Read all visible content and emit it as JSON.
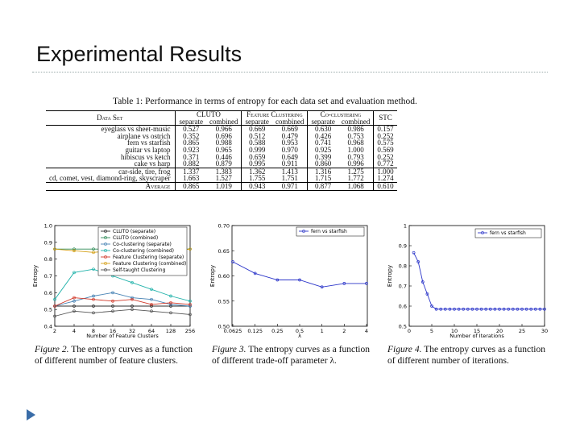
{
  "slide_title": "Experimental Results",
  "table": {
    "caption": "Table 1: Performance in terms of entropy for each data set and evaluation method.",
    "col_dataset": "Data Set",
    "groups": [
      "CLUTO",
      "Feature Clustering",
      "Co-clustering",
      "STC"
    ],
    "subcols": [
      "separate",
      "combined",
      "separate",
      "combined",
      "separate",
      "combined"
    ],
    "rows": [
      {
        "name": "eyeglass vs sheet-music",
        "v": [
          "0.527",
          "0.966",
          "0.669",
          "0.669",
          "0.630",
          "0.986",
          "0.157"
        ]
      },
      {
        "name": "airplane vs ostrich",
        "v": [
          "0.352",
          "0.696",
          "0.512",
          "0.479",
          "0.426",
          "0.753",
          "0.252"
        ]
      },
      {
        "name": "fern vs starfish",
        "v": [
          "0.865",
          "0.988",
          "0.588",
          "0.953",
          "0.741",
          "0.968",
          "0.575"
        ]
      },
      {
        "name": "guitar vs laptop",
        "v": [
          "0.923",
          "0.965",
          "0.999",
          "0.970",
          "0.925",
          "1.000",
          "0.569"
        ]
      },
      {
        "name": "hibiscus vs ketch",
        "v": [
          "0.371",
          "0.446",
          "0.659",
          "0.649",
          "0.399",
          "0.793",
          "0.252"
        ]
      },
      {
        "name": "cake vs harp",
        "v": [
          "0.882",
          "0.879",
          "0.995",
          "0.911",
          "0.860",
          "0.996",
          "0.772"
        ]
      }
    ],
    "rows_multi": [
      {
        "name": "car-side, tire, frog",
        "v": [
          "1.337",
          "1.383",
          "1.362",
          "1.413",
          "1.316",
          "1.275",
          "1.000"
        ]
      },
      {
        "name": "cd, comet, vest, diamond-ring, skyscraper",
        "v": [
          "1.663",
          "1.527",
          "1.755",
          "1.751",
          "1.715",
          "1.772",
          "1.274"
        ]
      }
    ],
    "average": {
      "name": "Average",
      "v": [
        "0.865",
        "1.019",
        "0.943",
        "0.971",
        "0.877",
        "1.068",
        "0.610"
      ]
    }
  },
  "fig2": {
    "chart_data": {
      "type": "line",
      "x": [
        2,
        4,
        8,
        16,
        32,
        64,
        128,
        256
      ],
      "xlabel": "Number of Feature Clusters",
      "ylabel": "Entropy",
      "ylim": [
        0.4,
        1.0
      ],
      "yticks": [
        "0.4",
        "0.5",
        "0.6",
        "0.7",
        "0.8",
        "0.9",
        "1.0"
      ],
      "legend_position": "top-right",
      "series": [
        {
          "name": "CLUTO (separate)",
          "color": "#2c2c2c",
          "values": [
            0.52,
            0.52,
            0.52,
            0.52,
            0.52,
            0.52,
            0.52,
            0.52
          ]
        },
        {
          "name": "CLUTO (combined)",
          "color": "#2e8b57",
          "values": [
            0.86,
            0.86,
            0.86,
            0.86,
            0.86,
            0.86,
            0.86,
            0.86
          ]
        },
        {
          "name": "Co-clustering (separate)",
          "color": "#4682b4",
          "values": [
            0.52,
            0.55,
            0.58,
            0.6,
            0.57,
            0.56,
            0.53,
            0.52
          ]
        },
        {
          "name": "Co-clustering (combined)",
          "color": "#20b2aa",
          "values": [
            0.56,
            0.72,
            0.74,
            0.7,
            0.66,
            0.62,
            0.58,
            0.55
          ]
        },
        {
          "name": "Feature Clustering (separate)",
          "color": "#d23a2a",
          "values": [
            0.52,
            0.57,
            0.56,
            0.55,
            0.56,
            0.53,
            0.54,
            0.53
          ]
        },
        {
          "name": "Feature Clustering (combined)",
          "color": "#d4a017",
          "values": [
            0.86,
            0.85,
            0.84,
            0.85,
            0.85,
            0.84,
            0.85,
            0.86
          ]
        },
        {
          "name": "Self-taught Clustering",
          "color": "#555555",
          "values": [
            0.46,
            0.49,
            0.48,
            0.49,
            0.5,
            0.49,
            0.48,
            0.47
          ]
        }
      ]
    },
    "caption_label": "Figure 2.",
    "caption_text": "The entropy curves as a function of different number of feature clusters."
  },
  "fig3": {
    "chart_data": {
      "type": "line",
      "x": [
        "0.0625",
        "0.125",
        "0.25",
        "0.5",
        "1",
        "2",
        "4"
      ],
      "xlabel": "λ",
      "ylabel": "Entropy",
      "ylim": [
        0.5,
        0.7
      ],
      "yticks": [
        "0.50",
        "0.55",
        "0.60",
        "0.65",
        "0.70"
      ],
      "legend_position": "top-right",
      "series": [
        {
          "name": "fern vs starfish",
          "color": "#2b35c9",
          "values": [
            0.628,
            0.605,
            0.592,
            0.592,
            0.578,
            0.585,
            0.585
          ]
        }
      ]
    },
    "caption_label": "Figure 3.",
    "caption_text": "The entropy curves as a function of different trade-off parameter λ."
  },
  "fig4": {
    "chart_data": {
      "type": "line",
      "x": [
        1,
        2,
        3,
        4,
        5,
        6,
        7,
        8,
        9,
        10,
        11,
        12,
        13,
        14,
        15,
        16,
        17,
        18,
        19,
        20,
        21,
        22,
        23,
        24,
        25,
        26,
        27,
        28,
        29,
        30
      ],
      "xlabel": "Number of Iterations",
      "ylabel": "Entropy",
      "ylim": [
        0.5,
        1.0
      ],
      "xticks": [
        "0",
        "5",
        "10",
        "15",
        "20",
        "25",
        "30"
      ],
      "yticks": [
        "0.5",
        "0.6",
        "0.7",
        "0.8",
        "0.9",
        "1"
      ],
      "legend_position": "top-right",
      "series": [
        {
          "name": "fern vs starfish",
          "color": "#2b35c9",
          "values": [
            0.865,
            0.82,
            0.72,
            0.66,
            0.6,
            0.585,
            0.585,
            0.585,
            0.585,
            0.585,
            0.585,
            0.585,
            0.585,
            0.585,
            0.585,
            0.585,
            0.585,
            0.585,
            0.585,
            0.585,
            0.585,
            0.585,
            0.585,
            0.585,
            0.585,
            0.585,
            0.585,
            0.585,
            0.585,
            0.585
          ]
        }
      ]
    },
    "caption_label": "Figure 4.",
    "caption_text": "The entropy curves as a function of different number of iterations."
  }
}
